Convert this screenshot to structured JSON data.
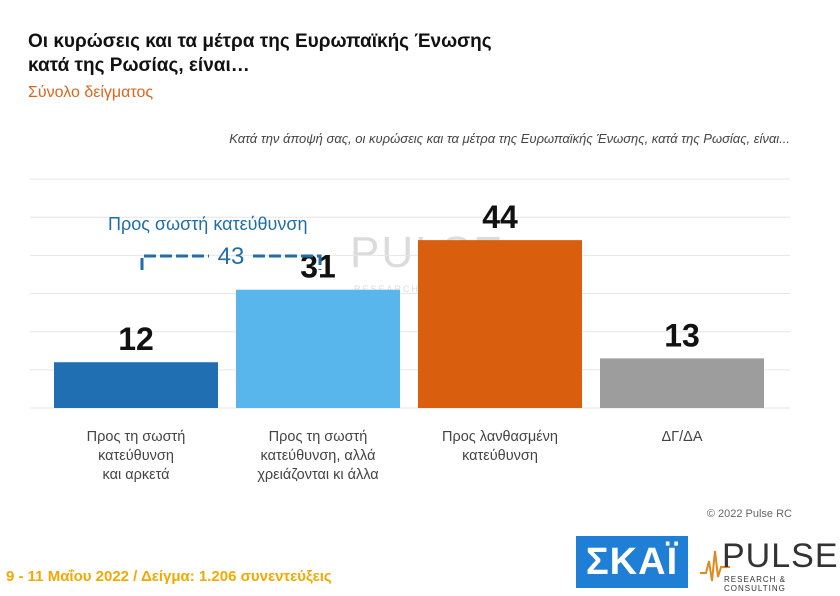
{
  "header": {
    "title_line1": "Οι κυρώσεις και τα μέτρα της Ευρωπαϊκής Ένωσης",
    "title_line2": "κατά της Ρωσίας, είναι…",
    "subtitle": "Σύνολο δείγματος",
    "question": "Κατά την άποψή σας, οι κυρώσεις και τα μέτρα της Ευρωπαϊκής Ένωσης, κατά της Ρωσίας, είναι..."
  },
  "chart_data": {
    "type": "bar",
    "categories": [
      "Προς τη σωστή κατεύθυνση και αρκετά",
      "Προς τη σωστή κατεύθυνση, αλλά χρειάζονται κι άλλα",
      "Προς λανθασμένη κατεύθυνση",
      "ΔΓ/ΔΑ"
    ],
    "category_lines": [
      [
        "Προς τη σωστή",
        "κατεύθυνση",
        "και αρκετά"
      ],
      [
        "Προς τη σωστή",
        "κατεύθυνση, αλλά",
        "χρειάζονται κι άλλα"
      ],
      [
        "Προς λανθασμένη",
        "κατεύθυνση"
      ],
      [
        "ΔΓ/ΔΑ"
      ]
    ],
    "values": [
      12,
      31,
      44,
      13
    ],
    "colors": [
      "#1f6fb2",
      "#58b6ec",
      "#d95f0e",
      "#9d9d9d"
    ],
    "ylim": [
      0,
      65
    ],
    "grid": true,
    "annotation": {
      "label": "Προς σωστή κατεύθυνση",
      "value": "43",
      "spans": [
        0,
        1
      ],
      "color": "#1f6ea8"
    }
  },
  "watermark": {
    "word": "PULSE",
    "sub": "RESEARCH & CONSULTING"
  },
  "footer": {
    "copyright": "© 2022 Pulse RC",
    "fieldwork": "9 - 11  Μαΐου  2022  /  Δείγμα:  1.206 συνεντεύξεις"
  },
  "logos": {
    "skai": "ΣΚΑΪ",
    "pulse_word": "PULSE",
    "pulse_sub": "RESEARCH & CONSULTING"
  }
}
